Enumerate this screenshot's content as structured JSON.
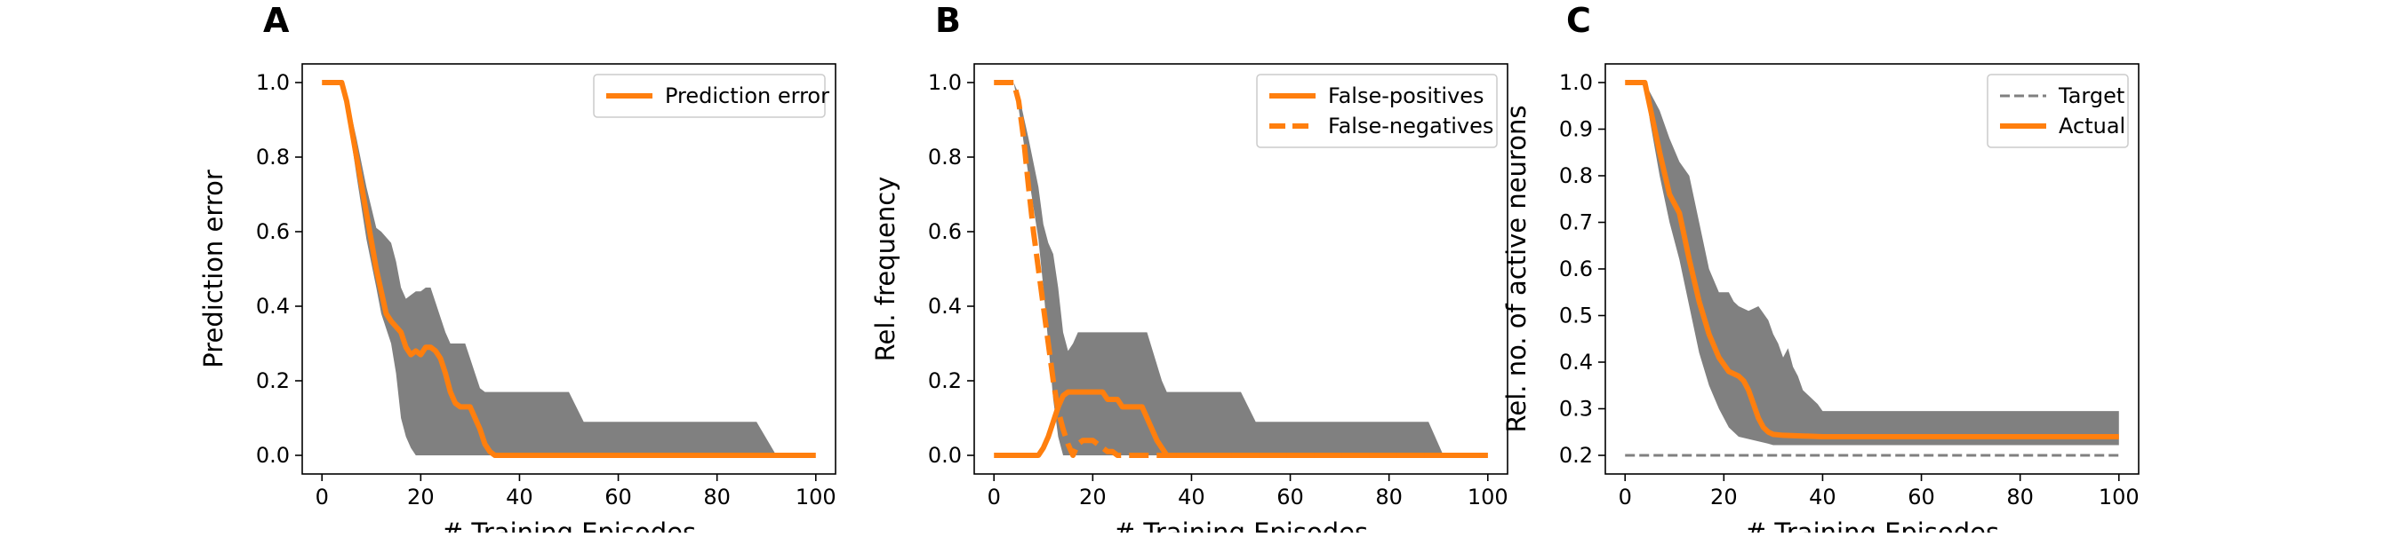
{
  "colors": {
    "line": "#ff7f0e",
    "band": "#808080",
    "target": "#808080",
    "axes": "#000000",
    "legend_edge": "#cccccc"
  },
  "chart_data": [
    {
      "type": "line",
      "panel_label": "A",
      "xlabel": "# Training Episodes",
      "ylabel": "Prediction error",
      "xlim": [
        -4,
        104
      ],
      "ylim": [
        -0.05,
        1.05
      ],
      "xticks": [
        0,
        20,
        40,
        60,
        80,
        100
      ],
      "yticks": [
        0.0,
        0.2,
        0.4,
        0.6,
        0.8,
        1.0
      ],
      "ytick_labels": [
        "0.0",
        "0.2",
        "0.4",
        "0.6",
        "0.8",
        "1.0"
      ],
      "grid": false,
      "legend_position": "upper right",
      "series": [
        {
          "name": "Prediction error",
          "style": "solid",
          "x": [
            0,
            4,
            5,
            7,
            9,
            11,
            13,
            14,
            16,
            17,
            18,
            19,
            20,
            21,
            22,
            23,
            24,
            25,
            26,
            27,
            28,
            29,
            30,
            31,
            32,
            33,
            34,
            35,
            36,
            40,
            60,
            80,
            100
          ],
          "y": [
            1.0,
            1.0,
            0.95,
            0.8,
            0.65,
            0.5,
            0.38,
            0.36,
            0.33,
            0.29,
            0.27,
            0.28,
            0.27,
            0.29,
            0.29,
            0.28,
            0.26,
            0.22,
            0.17,
            0.14,
            0.13,
            0.13,
            0.13,
            0.1,
            0.07,
            0.03,
            0.01,
            0.0,
            0.0,
            0.0,
            0.0,
            0.0,
            0.0
          ]
        }
      ],
      "band": {
        "x": [
          0,
          4,
          5,
          7,
          9,
          11,
          12,
          14,
          15,
          16,
          17,
          18,
          19,
          20,
          21,
          22,
          23,
          24,
          25,
          26,
          27,
          28,
          29,
          30,
          31,
          32,
          33,
          34,
          35,
          36,
          40,
          50,
          53,
          60,
          80,
          88,
          92,
          100
        ],
        "upper": [
          1.0,
          1.0,
          0.97,
          0.85,
          0.72,
          0.61,
          0.6,
          0.57,
          0.52,
          0.45,
          0.42,
          0.43,
          0.44,
          0.44,
          0.45,
          0.45,
          0.41,
          0.37,
          0.33,
          0.3,
          0.3,
          0.3,
          0.3,
          0.26,
          0.22,
          0.18,
          0.17,
          0.17,
          0.17,
          0.17,
          0.17,
          0.17,
          0.09,
          0.09,
          0.09,
          0.09,
          0.0,
          0.0
        ],
        "lower": [
          1.0,
          1.0,
          0.93,
          0.75,
          0.58,
          0.45,
          0.38,
          0.3,
          0.22,
          0.1,
          0.05,
          0.02,
          0.0,
          0.0,
          0.0,
          0.0,
          0.0,
          0.0,
          0.0,
          0.0,
          0.0,
          0.0,
          0.0,
          0.0,
          0.0,
          0.0,
          0.0,
          0.0,
          0.0,
          0.0,
          0.0,
          0.0,
          0.0,
          0.0,
          0.0,
          0.0,
          0.0,
          0.0
        ]
      }
    },
    {
      "type": "line",
      "panel_label": "B",
      "xlabel": "# Training Episodes",
      "ylabel": "Rel. frequency",
      "xlim": [
        -4,
        104
      ],
      "ylim": [
        -0.05,
        1.05
      ],
      "xticks": [
        0,
        20,
        40,
        60,
        80,
        100
      ],
      "yticks": [
        0.0,
        0.2,
        0.4,
        0.6,
        0.8,
        1.0
      ],
      "ytick_labels": [
        "0.0",
        "0.2",
        "0.4",
        "0.6",
        "0.8",
        "1.0"
      ],
      "grid": false,
      "legend_position": "upper right",
      "series": [
        {
          "name": "False-positives",
          "style": "solid",
          "x": [
            0,
            9,
            10,
            11,
            12,
            13,
            14,
            15,
            16,
            17,
            18,
            19,
            20,
            21,
            22,
            23,
            24,
            25,
            26,
            27,
            28,
            29,
            30,
            31,
            32,
            33,
            34,
            35,
            40,
            60,
            80,
            100
          ],
          "y": [
            0.0,
            0.0,
            0.02,
            0.05,
            0.09,
            0.13,
            0.16,
            0.17,
            0.17,
            0.17,
            0.17,
            0.17,
            0.17,
            0.17,
            0.17,
            0.15,
            0.15,
            0.15,
            0.13,
            0.13,
            0.13,
            0.13,
            0.13,
            0.1,
            0.07,
            0.04,
            0.02,
            0.0,
            0.0,
            0.0,
            0.0,
            0.0
          ]
        },
        {
          "name": "False-negatives",
          "style": "dashed",
          "x": [
            0,
            4,
            5,
            6,
            7,
            8,
            9,
            10,
            11,
            12,
            13,
            14,
            15,
            16,
            17,
            18,
            19,
            20,
            21,
            22,
            23,
            24,
            25,
            26,
            27,
            28,
            30,
            40,
            60,
            80,
            100
          ],
          "y": [
            1.0,
            1.0,
            0.95,
            0.85,
            0.72,
            0.6,
            0.5,
            0.4,
            0.3,
            0.2,
            0.12,
            0.07,
            0.03,
            0.0,
            0.03,
            0.04,
            0.04,
            0.04,
            0.03,
            0.02,
            0.01,
            0.01,
            0.0,
            0.0,
            0.0,
            0.0,
            0.0,
            0.0,
            0.0,
            0.0,
            0.0
          ]
        }
      ],
      "band": {
        "x": [
          0,
          4,
          5,
          7,
          9,
          10,
          11,
          12,
          13,
          14,
          15,
          16,
          17,
          18,
          19,
          20,
          25,
          30,
          31,
          34,
          35,
          40,
          50,
          53,
          60,
          80,
          88,
          91,
          100
        ],
        "upper": [
          1.0,
          1.0,
          0.97,
          0.85,
          0.72,
          0.62,
          0.57,
          0.54,
          0.45,
          0.33,
          0.28,
          0.3,
          0.33,
          0.33,
          0.33,
          0.33,
          0.33,
          0.33,
          0.33,
          0.2,
          0.17,
          0.17,
          0.17,
          0.09,
          0.09,
          0.09,
          0.09,
          0.0,
          0.0
        ],
        "lower": [
          1.0,
          1.0,
          0.93,
          0.75,
          0.58,
          0.45,
          0.3,
          0.15,
          0.05,
          0.0,
          0.0,
          0.0,
          0.0,
          0.0,
          0.0,
          0.0,
          0.0,
          0.0,
          0.0,
          0.0,
          0.0,
          0.0,
          0.0,
          0.0,
          0.0,
          0.0,
          0.0,
          0.0,
          0.0
        ]
      }
    },
    {
      "type": "line",
      "panel_label": "C",
      "xlabel": "# Training Episodes",
      "ylabel": "Rel. no. of active neurons",
      "xlim": [
        -4,
        104
      ],
      "ylim": [
        0.16,
        1.04
      ],
      "xticks": [
        0,
        20,
        40,
        60,
        80,
        100
      ],
      "yticks": [
        0.2,
        0.3,
        0.4,
        0.5,
        0.6,
        0.7,
        0.8,
        0.9,
        1.0
      ],
      "ytick_labels": [
        "0.2",
        "0.3",
        "0.4",
        "0.5",
        "0.6",
        "0.7",
        "0.8",
        "0.9",
        "1.0"
      ],
      "grid": false,
      "legend_position": "upper right",
      "series": [
        {
          "name": "Target",
          "style": "dashed-thin",
          "x": [
            0,
            100
          ],
          "y": [
            0.2,
            0.2
          ]
        },
        {
          "name": "Actual",
          "style": "solid",
          "x": [
            0,
            4,
            5,
            7,
            9,
            11,
            13,
            15,
            17,
            19,
            21,
            23,
            24,
            25,
            26,
            27,
            28,
            29,
            30,
            32,
            35,
            40,
            60,
            80,
            100
          ],
          "y": [
            1.0,
            1.0,
            0.95,
            0.85,
            0.76,
            0.72,
            0.62,
            0.53,
            0.46,
            0.41,
            0.38,
            0.37,
            0.36,
            0.34,
            0.31,
            0.28,
            0.26,
            0.25,
            0.245,
            0.243,
            0.242,
            0.24,
            0.24,
            0.24,
            0.24
          ]
        }
      ],
      "band": {
        "x": [
          0,
          4,
          5,
          7,
          9,
          11,
          13,
          15,
          17,
          19,
          21,
          22,
          23,
          25,
          27,
          29,
          30,
          31,
          32,
          33,
          34,
          35,
          36,
          37,
          38,
          39,
          40,
          60,
          80,
          100
        ],
        "upper": [
          1.0,
          1.0,
          0.98,
          0.94,
          0.88,
          0.83,
          0.8,
          0.7,
          0.6,
          0.55,
          0.55,
          0.53,
          0.52,
          0.51,
          0.52,
          0.49,
          0.46,
          0.44,
          0.41,
          0.43,
          0.39,
          0.37,
          0.34,
          0.33,
          0.32,
          0.31,
          0.295,
          0.295,
          0.295,
          0.295
        ],
        "lower": [
          1.0,
          1.0,
          0.92,
          0.8,
          0.7,
          0.62,
          0.52,
          0.42,
          0.35,
          0.3,
          0.26,
          0.25,
          0.24,
          0.235,
          0.23,
          0.225,
          0.222,
          0.222,
          0.222,
          0.222,
          0.222,
          0.222,
          0.222,
          0.222,
          0.222,
          0.222,
          0.222,
          0.222,
          0.222,
          0.222
        ]
      }
    }
  ]
}
